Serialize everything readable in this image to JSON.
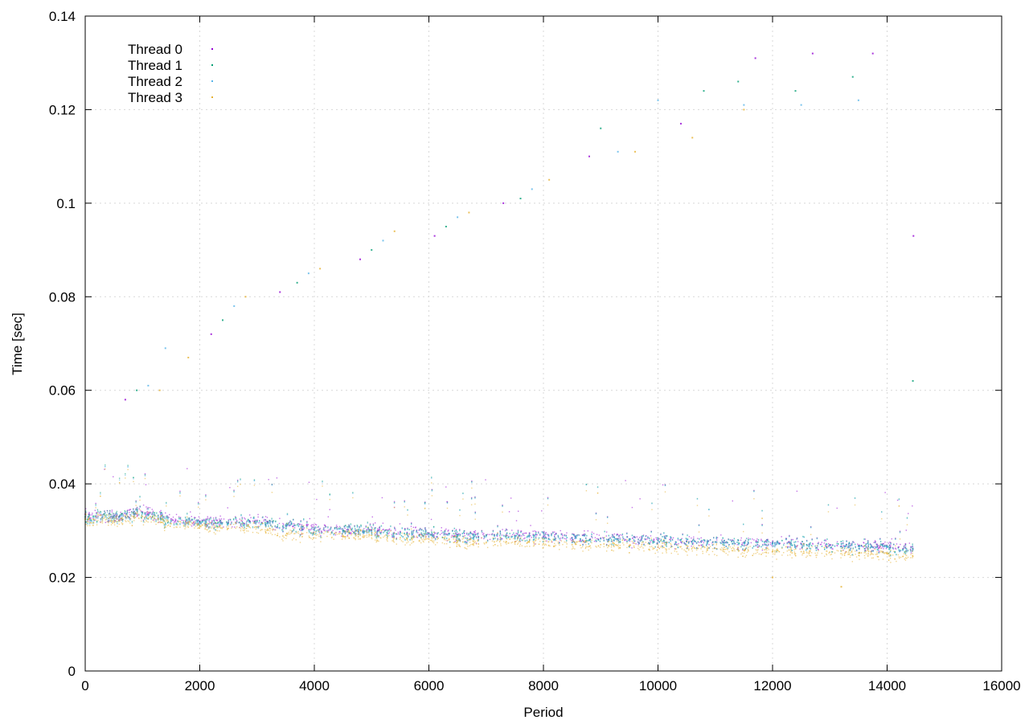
{
  "chart_data": {
    "type": "scatter",
    "title": "",
    "xlabel": "Period",
    "ylabel": "Time [sec]",
    "xlim": [
      0,
      16000
    ],
    "ylim": [
      0,
      0.14
    ],
    "xticks": [
      0,
      2000,
      4000,
      6000,
      8000,
      10000,
      12000,
      14000,
      16000
    ],
    "xtick_labels": [
      "0",
      "2000",
      "4000",
      "6000",
      "8000",
      "10000",
      "12000",
      "14000",
      "16000"
    ],
    "yticks": [
      0,
      0.02,
      0.04,
      0.06,
      0.08,
      0.1,
      0.12,
      0.14
    ],
    "ytick_labels": [
      "0",
      "0.02",
      "0.04",
      "0.06",
      "0.08",
      "0.1",
      "0.12",
      "0.14"
    ],
    "grid": true,
    "legend_position": "top-left",
    "series": [
      {
        "name": "Thread 0",
        "color": "#9400d3",
        "x": [
          0,
          500,
          1000,
          1500,
          2000,
          2500,
          3000,
          3500,
          4000,
          4500,
          5000,
          5500,
          6000,
          6500,
          7000,
          7500,
          8000,
          8500,
          9000,
          9500,
          10000,
          10500,
          11000,
          11500,
          12000,
          12500,
          13000,
          13500,
          14000,
          14450
        ],
        "y": [
          0.0335,
          0.033,
          0.034,
          0.0325,
          0.032,
          0.0318,
          0.0322,
          0.031,
          0.0305,
          0.03,
          0.0302,
          0.0298,
          0.0295,
          0.0292,
          0.029,
          0.029,
          0.0288,
          0.0285,
          0.0284,
          0.0282,
          0.028,
          0.0278,
          0.0276,
          0.0275,
          0.0274,
          0.0272,
          0.027,
          0.0268,
          0.0266,
          0.0262
        ],
        "outliers_x": [
          700,
          2200,
          3400,
          4800,
          6100,
          7300,
          8800,
          10400,
          11700,
          12700,
          13750,
          14460
        ],
        "outliers_y": [
          0.058,
          0.072,
          0.081,
          0.088,
          0.093,
          0.1,
          0.11,
          0.117,
          0.131,
          0.132,
          0.132,
          0.093
        ]
      },
      {
        "name": "Thread 1",
        "color": "#009e73",
        "x": [
          0,
          500,
          1000,
          1500,
          2000,
          2500,
          3000,
          3500,
          4000,
          4500,
          5000,
          5500,
          6000,
          6500,
          7000,
          7500,
          8000,
          8500,
          9000,
          9500,
          10000,
          10500,
          11000,
          11500,
          12000,
          12500,
          13000,
          13500,
          14000,
          14450
        ],
        "y": [
          0.033,
          0.0332,
          0.0338,
          0.0322,
          0.0318,
          0.0316,
          0.032,
          0.0312,
          0.0302,
          0.03,
          0.03,
          0.0296,
          0.0294,
          0.029,
          0.0289,
          0.0288,
          0.0286,
          0.0284,
          0.0283,
          0.0281,
          0.0279,
          0.0277,
          0.0276,
          0.0274,
          0.0272,
          0.0271,
          0.0269,
          0.0267,
          0.0265,
          0.026
        ],
        "outliers_x": [
          900,
          2400,
          3700,
          5000,
          6300,
          7600,
          9000,
          10800,
          11400,
          12400,
          13400,
          14450
        ],
        "outliers_y": [
          0.06,
          0.075,
          0.083,
          0.09,
          0.095,
          0.101,
          0.116,
          0.124,
          0.126,
          0.124,
          0.127,
          0.062
        ]
      },
      {
        "name": "Thread 2",
        "color": "#56b4e9",
        "x": [
          0,
          500,
          1000,
          1500,
          2000,
          2500,
          3000,
          3500,
          4000,
          4500,
          5000,
          5500,
          6000,
          6500,
          7000,
          7500,
          8000,
          8500,
          9000,
          9500,
          10000,
          10500,
          11000,
          11500,
          12000,
          12500,
          13000,
          13500,
          14000,
          14450
        ],
        "y": [
          0.0328,
          0.0328,
          0.0336,
          0.032,
          0.0316,
          0.0314,
          0.0318,
          0.031,
          0.03,
          0.0298,
          0.0298,
          0.0295,
          0.0292,
          0.0289,
          0.0287,
          0.0287,
          0.0285,
          0.0283,
          0.0282,
          0.028,
          0.0278,
          0.0276,
          0.0275,
          0.0273,
          0.0271,
          0.027,
          0.0268,
          0.0266,
          0.0264,
          0.0258
        ],
        "outliers_x": [
          1100,
          2600,
          3900,
          5200,
          6500,
          7800,
          9300,
          10000,
          11500,
          12500,
          13500,
          1400
        ],
        "outliers_y": [
          0.061,
          0.078,
          0.085,
          0.092,
          0.097,
          0.103,
          0.111,
          0.122,
          0.121,
          0.121,
          0.122,
          0.069
        ]
      },
      {
        "name": "Thread 3",
        "color": "#e6b030",
        "x": [
          0,
          500,
          1000,
          1500,
          2000,
          2500,
          3000,
          3500,
          4000,
          4500,
          5000,
          5500,
          6000,
          6500,
          7000,
          7500,
          8000,
          8500,
          9000,
          9500,
          10000,
          10500,
          11000,
          11500,
          12000,
          12500,
          13000,
          13500,
          14000,
          14450
        ],
        "y": [
          0.0325,
          0.0322,
          0.033,
          0.0315,
          0.031,
          0.0305,
          0.0308,
          0.029,
          0.0292,
          0.0288,
          0.029,
          0.0285,
          0.0282,
          0.0278,
          0.0274,
          0.0276,
          0.0272,
          0.027,
          0.027,
          0.0268,
          0.0265,
          0.0262,
          0.0262,
          0.0258,
          0.0255,
          0.0255,
          0.0254,
          0.0252,
          0.025,
          0.0245
        ],
        "outliers_x": [
          1300,
          2800,
          4100,
          5400,
          6700,
          8100,
          9600,
          10600,
          11500,
          12000,
          13200,
          1800
        ],
        "outliers_y": [
          0.06,
          0.08,
          0.086,
          0.094,
          0.098,
          0.105,
          0.111,
          0.114,
          0.12,
          0.02,
          0.018,
          0.067
        ]
      }
    ]
  }
}
